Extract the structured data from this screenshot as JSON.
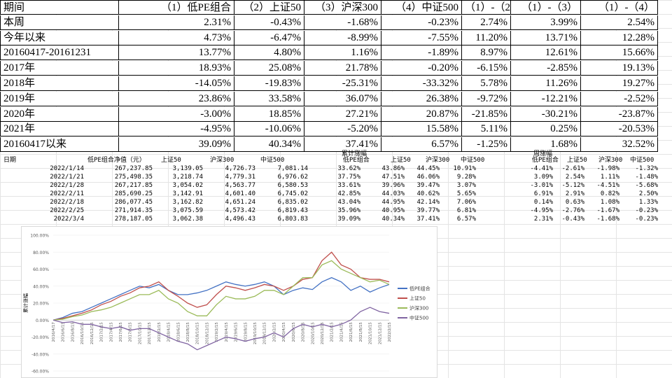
{
  "table_top": {
    "header": [
      "期间",
      "（1）低PE组合",
      "（2）上证50",
      "（3）沪深300",
      "（4）中证500",
      "（1）-（2）",
      "（1）-（3）",
      "（1）-（4）"
    ],
    "rows": [
      [
        "本周",
        "2.31%",
        "-0.43%",
        "-1.68%",
        "-0.23%",
        "2.74%",
        "3.99%",
        "2.54%"
      ],
      [
        "今年以来",
        "4.73%",
        "-6.47%",
        "-8.99%",
        "-7.55%",
        "11.20%",
        "13.71%",
        "12.28%"
      ],
      [
        "20160417-20161231",
        "13.77%",
        "4.80%",
        "1.16%",
        "-1.89%",
        "8.97%",
        "12.61%",
        "15.66%"
      ],
      [
        "2017年",
        "18.93%",
        "25.08%",
        "21.78%",
        "-0.20%",
        "-6.15%",
        "-2.85%",
        "19.13%"
      ],
      [
        "2018年",
        "-14.05%",
        "-19.83%",
        "-25.31%",
        "-33.32%",
        "5.78%",
        "11.26%",
        "19.27%"
      ],
      [
        "2019年",
        "23.86%",
        "33.58%",
        "36.07%",
        "26.38%",
        "-9.72%",
        "-12.21%",
        "-2.52%"
      ],
      [
        "2020年",
        "-3.00%",
        "18.85%",
        "27.21%",
        "20.87%",
        "-21.85%",
        "-30.21%",
        "-23.87%"
      ],
      [
        "2021年",
        "-4.95%",
        "-10.06%",
        "-5.20%",
        "15.58%",
        "5.11%",
        "0.25%",
        "-20.53%"
      ],
      [
        "20160417以来",
        "39.09%",
        "40.34%",
        "37.41%",
        "6.57%",
        "-1.25%",
        "1.68%",
        "32.52%"
      ]
    ]
  },
  "table_mid": {
    "group_labels": [
      "累计涨幅",
      "周涨幅"
    ],
    "header": [
      "日期",
      "低PE组合净值（元）",
      "上证50",
      "沪深300",
      "中证500",
      "低PE组合",
      "上证50",
      "沪深300",
      "中证500",
      "低PE组合",
      "上证50",
      "沪深300",
      "中证500"
    ],
    "rows": [
      [
        "2022/1/14",
        "267,237.85",
        "3,139.05",
        "4,726.73",
        "7,081.14",
        "33.62%",
        "43.86%",
        "44.45%",
        "10.91%",
        "-4.41%",
        "-2.61%",
        "-1.98%",
        "-1.32%"
      ],
      [
        "2022/1/21",
        "275,498.35",
        "3,218.74",
        "4,779.31",
        "6,976.62",
        "37.75%",
        "47.51%",
        "46.06%",
        "9.28%",
        "3.09%",
        "2.54%",
        "1.11%",
        "-1.48%"
      ],
      [
        "2022/1/28",
        "267,217.85",
        "3,054.02",
        "4,563.77",
        "6,580.53",
        "33.61%",
        "39.96%",
        "39.47%",
        "3.07%",
        "-3.01%",
        "-5.12%",
        "-4.51%",
        "-5.68%"
      ],
      [
        "2022/2/11",
        "285,690.25",
        "3,142.91",
        "4,601.40",
        "6,745.02",
        "42.85%",
        "44.03%",
        "40.62%",
        "5.65%",
        "6.91%",
        "2.91%",
        "0.82%",
        "2.50%"
      ],
      [
        "2022/2/18",
        "286,077.45",
        "3,162.82",
        "4,651.24",
        "6,835.02",
        "43.04%",
        "44.95%",
        "42.14%",
        "7.06%",
        "0.14%",
        "0.63%",
        "1.08%",
        "1.33%"
      ],
      [
        "2022/2/25",
        "271,914.35",
        "3,075.59",
        "4,573.42",
        "6,819.43",
        "35.96%",
        "40.95%",
        "39.77%",
        "6.81%",
        "-4.95%",
        "-2.76%",
        "-1.67%",
        "-0.23%"
      ],
      [
        "2022/3/4",
        "278,187.05",
        "3,062.38",
        "4,496.43",
        "6,803.83",
        "39.09%",
        "40.34%",
        "37.41%",
        "6.57%",
        "2.31%",
        "-0.43%",
        "-1.68%",
        "-0.23%"
      ]
    ]
  },
  "chart_data": {
    "type": "line",
    "y_label": "累计涨幅",
    "categories": [
      "2016/4/17",
      "2016/6/15",
      "2016/8/15",
      "2016/10/15",
      "2016/12/15",
      "2017/2/15",
      "2017/4/15",
      "2017/6/15",
      "2017/8/15",
      "2017/10/15",
      "2017/12/15",
      "2018/2/15",
      "2018/4/15",
      "2018/6/15",
      "2018/8/15",
      "2018/10/15",
      "2018/12/15",
      "2019/2/15",
      "2019/4/15",
      "2019/6/15",
      "2019/8/15",
      "2019/10/15",
      "2019/12/15",
      "2020/2/15",
      "2020/4/15",
      "2020/6/15",
      "2020/8/15",
      "2020/10/15",
      "2020/12/15",
      "2021/2/15",
      "2021/4/15",
      "2021/6/15",
      "2021/8/15",
      "2021/10/15",
      "2021/12/15",
      "2022/2/15"
    ],
    "series": [
      {
        "name": "低PE组合",
        "color": "#4472c4",
        "values": [
          0,
          3,
          8,
          10,
          15,
          20,
          25,
          30,
          35,
          40,
          38,
          42,
          35,
          30,
          30,
          32,
          35,
          40,
          45,
          42,
          40,
          42,
          45,
          40,
          30,
          35,
          38,
          36,
          45,
          50,
          45,
          35,
          40,
          33,
          38,
          42
        ]
      },
      {
        "name": "上证50",
        "color": "#c0504d",
        "values": [
          0,
          2,
          5,
          8,
          12,
          18,
          22,
          28,
          32,
          38,
          40,
          45,
          35,
          28,
          20,
          15,
          18,
          30,
          40,
          38,
          35,
          38,
          42,
          40,
          35,
          40,
          48,
          50,
          70,
          80,
          65,
          60,
          50,
          48,
          48,
          45
        ]
      },
      {
        "name": "沪深300",
        "color": "#9bbb59",
        "values": [
          0,
          1,
          4,
          6,
          10,
          12,
          15,
          20,
          25,
          30,
          30,
          35,
          25,
          20,
          10,
          5,
          5,
          18,
          28,
          25,
          25,
          28,
          35,
          35,
          30,
          40,
          50,
          50,
          65,
          70,
          60,
          55,
          50,
          45,
          47,
          42
        ]
      },
      {
        "name": "中证500",
        "color": "#8064a2",
        "values": [
          0,
          -3,
          -2,
          -5,
          -5,
          -8,
          -10,
          -8,
          -12,
          -10,
          -10,
          -15,
          -20,
          -25,
          -28,
          -35,
          -30,
          -25,
          -20,
          -22,
          -25,
          -22,
          -20,
          -15,
          -20,
          -10,
          -5,
          -8,
          -5,
          -8,
          -5,
          0,
          10,
          15,
          10,
          8
        ]
      }
    ],
    "ylim": [
      -60,
      100
    ],
    "yticks": [
      {
        "value": 100,
        "label": "100.00%"
      },
      {
        "value": 80,
        "label": "80.00%"
      },
      {
        "value": 60,
        "label": "60.00%"
      },
      {
        "value": 40,
        "label": "40.00%"
      },
      {
        "value": 20,
        "label": "20.00%"
      },
      {
        "value": 0,
        "label": "0.00%"
      },
      {
        "value": -20,
        "label": "-20.00%"
      },
      {
        "value": -40,
        "label": "-40.00%"
      },
      {
        "value": -60,
        "label": "-60.00%"
      }
    ],
    "grid": true,
    "legend": "right"
  }
}
